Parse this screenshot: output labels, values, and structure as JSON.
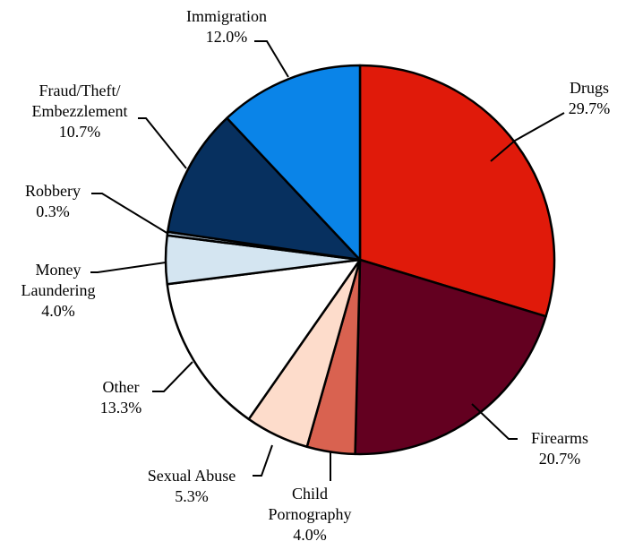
{
  "chart_data": {
    "type": "pie",
    "start_angle_deg": 0,
    "direction": "clockwise",
    "slices": [
      {
        "label": "Drugs",
        "value": 29.7,
        "display": "29.7%",
        "color": "#E01A0A"
      },
      {
        "label": "Firearms",
        "value": 20.7,
        "display": "20.7%",
        "color": "#630020"
      },
      {
        "label": "Child Pornography",
        "label_lines": [
          "Child",
          "Pornography"
        ],
        "value": 4.0,
        "display": "4.0%",
        "color": "#D96250"
      },
      {
        "label": "Sexual Abuse",
        "value": 5.3,
        "display": "5.3%",
        "color": "#FDDCCB"
      },
      {
        "label": "Other",
        "value": 13.3,
        "display": "13.3%",
        "color": "#FFFFFF"
      },
      {
        "label": "Money Laundering",
        "label_lines": [
          "Money",
          "Laundering"
        ],
        "value": 4.0,
        "display": "4.0%",
        "color": "#D4E5F1"
      },
      {
        "label": "Robbery",
        "value": 0.3,
        "display": "0.3%",
        "color": "#BFD6EA"
      },
      {
        "label": "Fraud/Theft/Embezzlement",
        "label_lines": [
          "Fraud/Theft/",
          "Embezzlement"
        ],
        "value": 10.7,
        "display": "10.7%",
        "color": "#07305F"
      },
      {
        "label": "Immigration",
        "value": 12.0,
        "display": "12.0%",
        "color": "#0A84E8"
      }
    ]
  }
}
